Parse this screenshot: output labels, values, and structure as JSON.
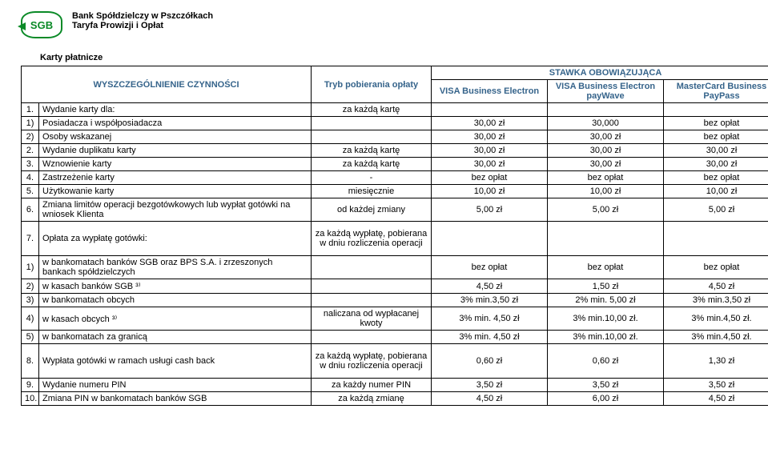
{
  "header": {
    "logo_text": "SGB",
    "bank_name": "Bank Spółdzielczy w Pszczółkach",
    "tariff": "Taryfa Prowizji i Opłat"
  },
  "section_title": "Karty  płatnicze",
  "table": {
    "headers": {
      "wyszczegolnienie": "WYSZCZEGÓLNIENIE CZYNNOŚCI",
      "tryb": "Tryb pobierania opłaty",
      "stawka": "STAWKA OBOWIĄZUJĄCA",
      "col1": "VISA Business Electron",
      "col2": "VISA Business Electron payWave",
      "col3": "MasterCard Business PayPass"
    },
    "rows": [
      {
        "no": "1.",
        "desc": "Wydanie karty dla:",
        "mode": "za każdą kartę",
        "v1": "",
        "v2": "",
        "v3": ""
      },
      {
        "no": "1)",
        "desc": "Posiadacza i współposiadacza",
        "mode": "",
        "v1": "30,00 zł",
        "v2": "30,000",
        "v3": "bez opłat"
      },
      {
        "no": "2)",
        "desc": "Osoby wskazanej",
        "mode": "",
        "v1": "30,00 zł",
        "v2": "30,00 zł",
        "v3": "bez opłat"
      },
      {
        "no": "2.",
        "desc": "Wydanie duplikatu karty",
        "mode": "za każdą kartę",
        "v1": "30,00 zł",
        "v2": "30,00 zł",
        "v3": "30,00 zł"
      },
      {
        "no": "3.",
        "desc": "Wznowienie karty",
        "mode": "za każdą kartę",
        "v1": "30,00 zł",
        "v2": "30,00 zł",
        "v3": "30,00 zł"
      },
      {
        "no": "4.",
        "desc": "Zastrzeżenie karty",
        "mode": "-",
        "v1": "bez opłat",
        "v2": "bez opłat",
        "v3": "bez opłat"
      },
      {
        "no": "5.",
        "desc": "Użytkowanie karty",
        "mode": "miesięcznie",
        "v1": "10,00 zł",
        "v2": "10,00 zł",
        "v3": "10,00 zł"
      },
      {
        "no": "6.",
        "desc": "Zmiana limitów operacji bezgotówkowych lub wypłat gotówki na wniosek Klienta",
        "mode": "od każdej zmiany",
        "v1": "5,00 zł",
        "v2": "5,00 zł",
        "v3": "5,00 zł"
      },
      {
        "no": "7.",
        "desc": "Opłata za wypłatę gotówki:",
        "mode": "za każdą wypłatę, pobierana w dniu rozliczenia operacji",
        "v1": "",
        "v2": "",
        "v3": "",
        "tall": true
      },
      {
        "no": "1)",
        "desc": "w bankomatach banków SGB oraz BPS S.A. i zrzeszonych bankach spółdzielczych",
        "mode": "",
        "v1": "bez opłat",
        "v2": "bez opłat",
        "v3": "bez opłat"
      },
      {
        "no": "2)",
        "desc": "w kasach banków SGB ³⁾",
        "mode": "",
        "v1": "4,50 zł",
        "v2": "1,50 zł",
        "v3": "4,50 zł"
      },
      {
        "no": "3)",
        "desc": "w bankomatach obcych",
        "mode": "",
        "v1": "3% min.3,50 zł",
        "v2": "2% min. 5,00 zł",
        "v3": "3% min.3,50 zł"
      },
      {
        "no": "4)",
        "desc": "w kasach obcych ³⁾",
        "mode": "naliczana od wypłacanej kwoty",
        "v1": "3% min. 4,50 zł",
        "v2": "3% min.10,00 zł.",
        "v3": "3% min.4,50 zł."
      },
      {
        "no": "5)",
        "desc": "w bankomatach za granicą",
        "mode": "",
        "v1": "3% min. 4,50 zł",
        "v2": "3% min.10,00 zł.",
        "v3": "3% min.4,50 zł."
      },
      {
        "no": "8.",
        "desc": "Wypłata gotówki w ramach usługi cash back",
        "mode": "za każdą wypłatę, pobierana w dniu rozliczenia operacji",
        "v1": "0,60 zł",
        "v2": "0,60 zł",
        "v3": "1,30 zł",
        "tall": true
      },
      {
        "no": "9.",
        "desc": "Wydanie  numeru PIN",
        "mode": "za każdy numer PIN",
        "v1": "3,50 zł",
        "v2": "3,50 zł",
        "v3": "3,50 zł"
      },
      {
        "no": "10.",
        "desc": "Zmiana PIN w bankomatach banków SGB",
        "mode": "za każdą zmianę",
        "v1": "4,50 zł",
        "v2": "6,00 zł",
        "v3": "4,50 zł"
      }
    ]
  }
}
